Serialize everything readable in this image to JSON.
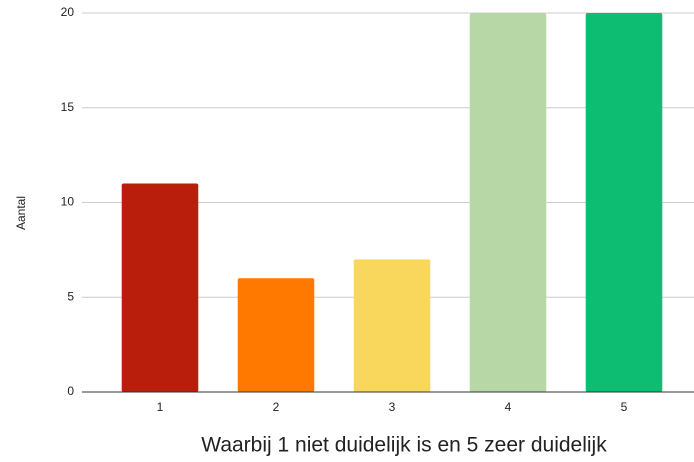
{
  "chart_data": {
    "type": "bar",
    "y_label": "Aantal",
    "x_label": "Waarbij 1 niet duidelijk is en 5 zeer duidelijk",
    "categories": [
      "1",
      "2",
      "3",
      "4",
      "5"
    ],
    "values": [
      11,
      6,
      7,
      20,
      20
    ],
    "colors": [
      "#b91d0b",
      "#ff7800",
      "#f9d65c",
      "#b7d8a6",
      "#0dbd71"
    ],
    "ylim": [
      0,
      20
    ],
    "yticks": [
      0,
      5,
      10,
      15,
      20
    ],
    "grid": true
  }
}
